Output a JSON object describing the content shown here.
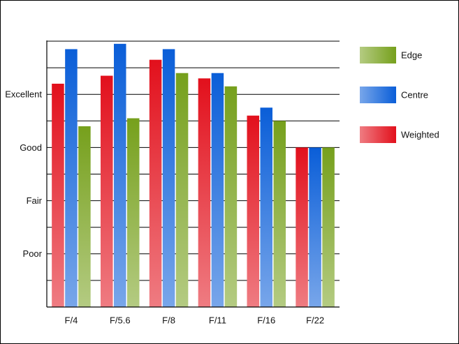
{
  "chart_data": {
    "type": "bar",
    "categories": [
      "F/4",
      "F/5.6",
      "F/8",
      "F/11",
      "F/16",
      "F/22"
    ],
    "series": [
      {
        "name": "Weighted",
        "color": "#e2101c",
        "values": [
          8.4,
          8.7,
          9.3,
          8.6,
          7.2,
          6.0
        ]
      },
      {
        "name": "Centre",
        "color": "#0a5ed8",
        "values": [
          9.7,
          9.9,
          9.7,
          8.8,
          7.5,
          6.0
        ]
      },
      {
        "name": "Edge",
        "color": "#76a01c",
        "values": [
          6.8,
          7.1,
          8.8,
          8.3,
          7.0,
          6.0
        ]
      }
    ],
    "ylim": [
      0,
      10
    ],
    "yticks": [
      {
        "value": 2,
        "label": "Poor"
      },
      {
        "value": 4,
        "label": "Fair"
      },
      {
        "value": 6,
        "label": "Good"
      },
      {
        "value": 8,
        "label": "Excellent"
      }
    ],
    "grid_yticks": [
      1,
      3,
      5,
      7,
      9,
      10
    ],
    "grid": true,
    "legend": "right"
  }
}
